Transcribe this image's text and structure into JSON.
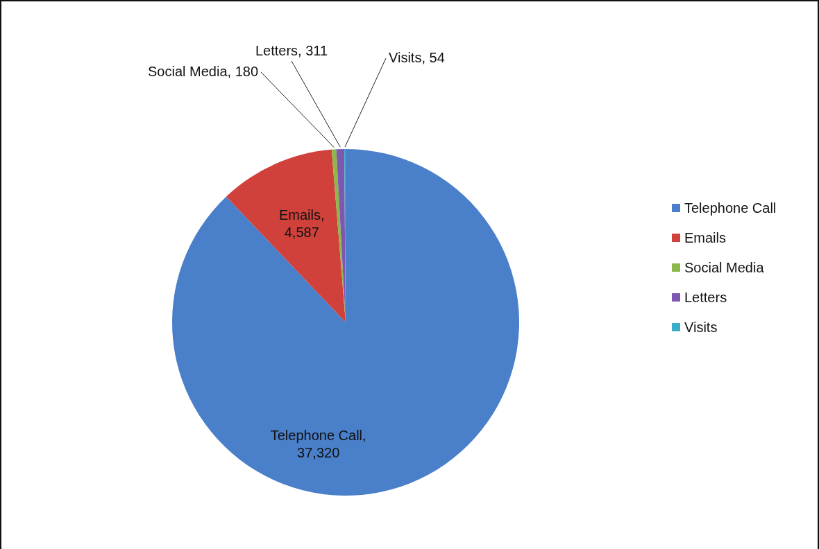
{
  "chart_data": {
    "type": "pie",
    "categories": [
      "Telephone Call",
      "Emails",
      "Social Media",
      "Letters",
      "Visits"
    ],
    "values": [
      37320,
      4587,
      180,
      311,
      54
    ],
    "value_labels": [
      "Telephone Call, 37,320",
      "Emails, 4,587",
      "Social Media, 180",
      "Letters, 311",
      "Visits, 54"
    ],
    "colors": [
      "#4a7fc9",
      "#d0413c",
      "#8cb84a",
      "#7e57b0",
      "#3aaec8"
    ],
    "data_labels": true,
    "legend": "right"
  }
}
